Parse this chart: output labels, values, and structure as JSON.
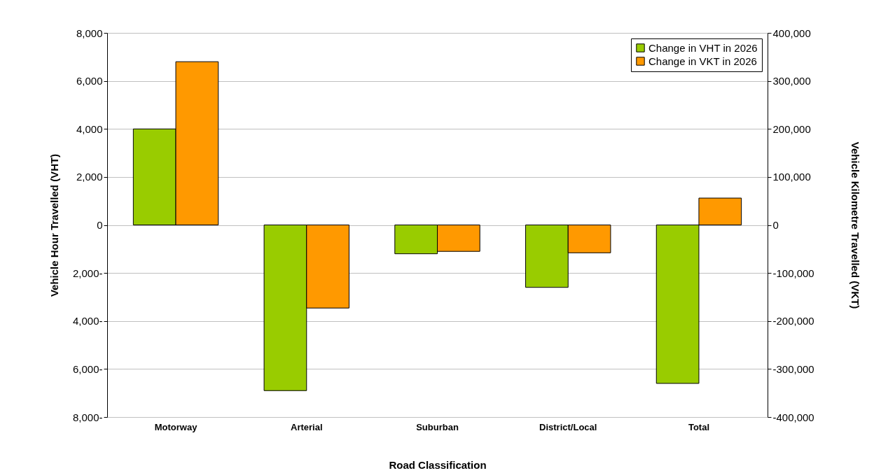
{
  "chart_data": {
    "type": "bar",
    "xlabel": "Road Classification",
    "ylabel": "Vehicle Hour Travelled (VHT)",
    "y2label": "Vehicle Kilometre Travelled (VKT)",
    "categories": [
      "Motorway",
      "Arterial",
      "Suburban",
      "District/Local",
      "Total"
    ],
    "series": [
      {
        "name": "Change in VHT in 2026",
        "color": "#99cc00",
        "values": [
          4000,
          -6900,
          -1200,
          -2600,
          -6600
        ]
      },
      {
        "name": "Change in VKT in 2026",
        "color": "#ff9900",
        "axis": "y2",
        "values": [
          340000,
          -173000,
          -55000,
          -58000,
          56000
        ]
      }
    ],
    "ylim": [
      -8000,
      8000
    ],
    "yticks": [
      {
        "value": -8000,
        "label": "8,000-"
      },
      {
        "value": -6000,
        "label": "6,000-"
      },
      {
        "value": -4000,
        "label": "4,000-"
      },
      {
        "value": -2000,
        "label": "2,000-"
      },
      0,
      {
        "value": 2000,
        "label": "2,000"
      },
      {
        "value": 4000,
        "label": "4,000"
      },
      {
        "value": 6000,
        "label": "6,000"
      },
      {
        "value": 8000,
        "label": "8,000"
      }
    ],
    "y2lim": [
      -400000,
      400000
    ],
    "y2ticks": [
      {
        "value": -400000,
        "label": "-400,000"
      },
      {
        "value": -300000,
        "label": "-300,000"
      },
      {
        "value": -200000,
        "label": "-200,000"
      },
      {
        "value": -100000,
        "label": "-100,000"
      },
      0,
      {
        "value": 100000,
        "label": "100,000"
      },
      {
        "value": 200000,
        "label": "200,000"
      },
      {
        "value": 300000,
        "label": "300,000"
      },
      {
        "value": 400000,
        "label": "400,000"
      }
    ],
    "grid": "y",
    "legend": "top right"
  }
}
